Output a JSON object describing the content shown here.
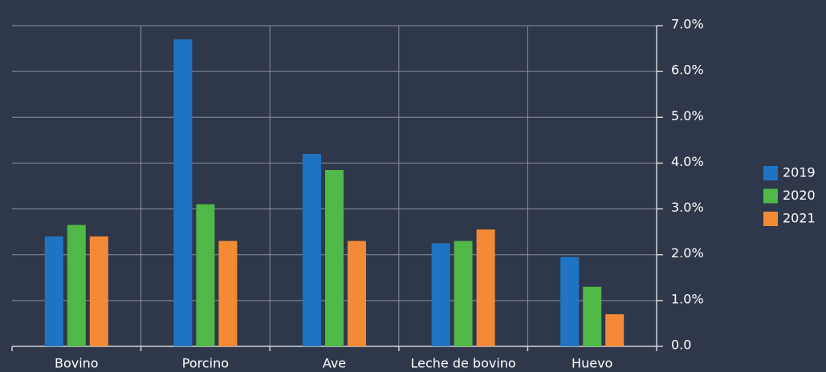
{
  "chart_data": {
    "type": "bar",
    "categories": [
      "Bovino",
      "Porcino",
      "Ave",
      "Leche de bovino",
      "Huevo"
    ],
    "series": [
      {
        "name": "2019",
        "color": "#1f74c2",
        "values": [
          2.4,
          6.7,
          4.2,
          2.25,
          1.95
        ]
      },
      {
        "name": "2020",
        "color": "#4fb847",
        "values": [
          2.65,
          3.1,
          3.85,
          2.3,
          1.3
        ]
      },
      {
        "name": "2021",
        "color": "#f48a36",
        "values": [
          2.4,
          2.3,
          2.3,
          2.55,
          0.7
        ]
      }
    ],
    "ylim": [
      0,
      7
    ],
    "yticks": [
      {
        "value": 0,
        "label": "0.0"
      },
      {
        "value": 1,
        "label": "1.0%"
      },
      {
        "value": 2,
        "label": "2.0%"
      },
      {
        "value": 3,
        "label": "3.0%"
      },
      {
        "value": 4,
        "label": "4.0%"
      },
      {
        "value": 5,
        "label": "5.0%"
      },
      {
        "value": 6,
        "label": "6.0%"
      },
      {
        "value": 7,
        "label": "7.0%"
      }
    ],
    "grid": true,
    "legend": "right"
  }
}
